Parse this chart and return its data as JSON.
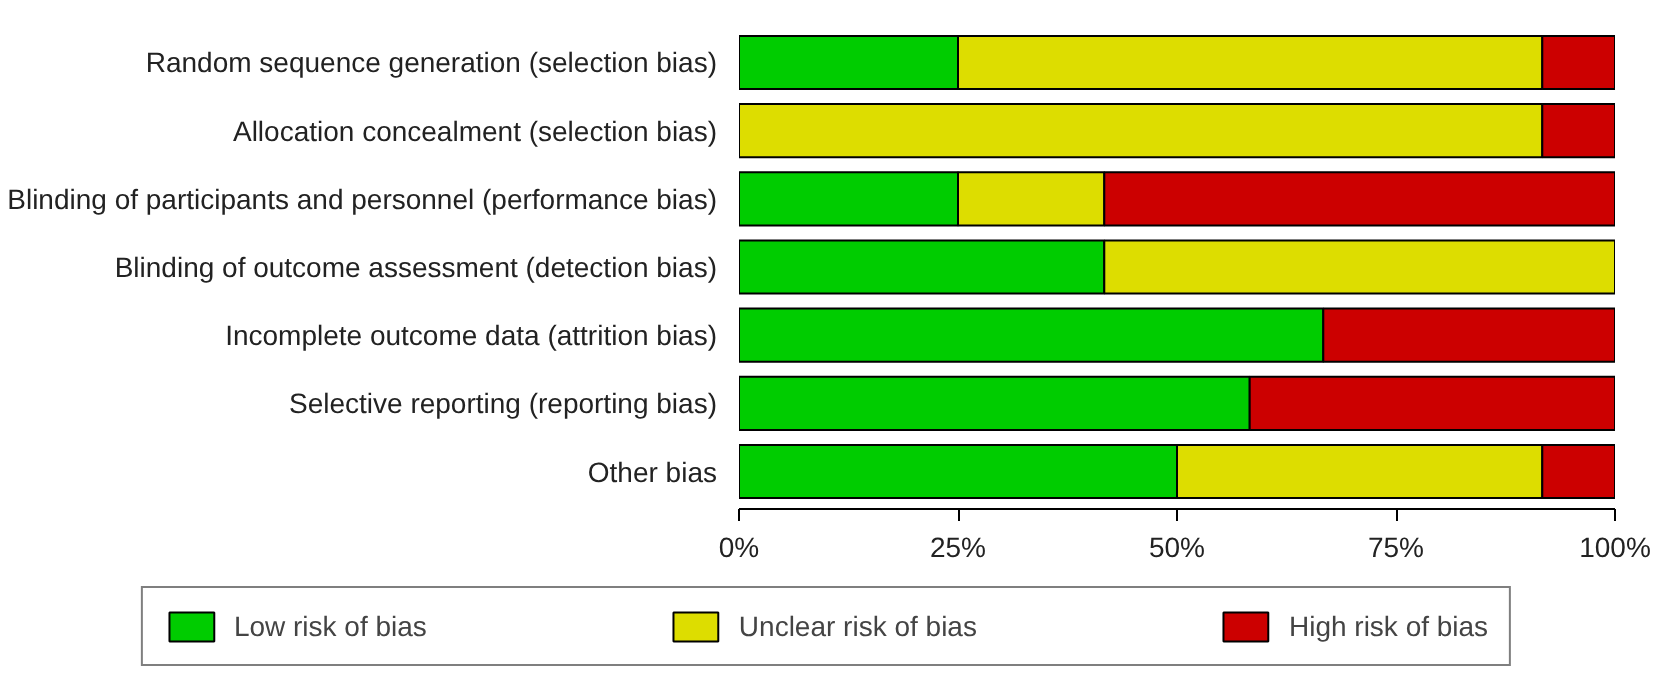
{
  "chart_data": {
    "type": "bar",
    "orientation": "horizontal",
    "stacked": true,
    "categories": [
      "Random sequence generation (selection bias)",
      "Allocation concealment (selection bias)",
      "Blinding of participants and personnel (performance bias)",
      "Blinding of outcome assessment (detection bias)",
      "Incomplete outcome data (attrition bias)",
      "Selective reporting (reporting bias)",
      "Other bias"
    ],
    "series": [
      {
        "name": "Low risk of bias",
        "color": "#00cc00",
        "values": [
          25,
          0,
          25,
          41.7,
          66.7,
          58.3,
          50
        ]
      },
      {
        "name": "Unclear risk of bias",
        "color": "#dddd00",
        "values": [
          66.7,
          91.7,
          16.7,
          58.3,
          0,
          0,
          41.7
        ]
      },
      {
        "name": "High risk of bias",
        "color": "#cc0000",
        "values": [
          8.3,
          8.3,
          58.3,
          0,
          33.3,
          41.7,
          8.3
        ]
      }
    ],
    "xlim": [
      0,
      100
    ],
    "xticks": [
      {
        "value": 0,
        "label": "0%"
      },
      {
        "value": 25,
        "label": "25%"
      },
      {
        "value": 50,
        "label": "50%"
      },
      {
        "value": 75,
        "label": "75%"
      },
      {
        "value": 100,
        "label": "100%"
      }
    ],
    "grid": false,
    "legend": "bottom"
  }
}
